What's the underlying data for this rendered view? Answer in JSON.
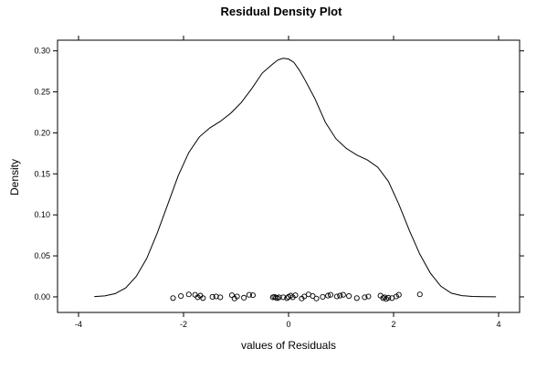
{
  "chart_data": {
    "type": "line",
    "title": "Residual Density Plot",
    "xlabel": "values of Residuals",
    "ylabel": "Density",
    "xlim": [
      -4.4,
      4.4
    ],
    "ylim": [
      -0.019,
      0.313
    ],
    "grid": false,
    "legend": "none",
    "x_ticks": [
      -4,
      -2,
      0,
      2,
      4
    ],
    "x_tick_labels": [
      "-4",
      "-2",
      "0",
      "2",
      "4"
    ],
    "y_ticks": [
      0.0,
      0.05,
      0.1,
      0.15,
      0.2,
      0.25,
      0.3
    ],
    "y_tick_labels": [
      "0.00",
      "0.05",
      "0.10",
      "0.15",
      "0.20",
      "0.25",
      "0.30"
    ],
    "series": [
      {
        "kind": "density-line",
        "color": "#000000",
        "x": [
          -3.7,
          -3.5,
          -3.3,
          -3.1,
          -2.9,
          -2.7,
          -2.5,
          -2.3,
          -2.1,
          -1.9,
          -1.7,
          -1.5,
          -1.3,
          -1.1,
          -0.9,
          -0.7,
          -0.5,
          -0.3,
          -0.2,
          -0.1,
          0.0,
          0.1,
          0.2,
          0.3,
          0.5,
          0.7,
          0.9,
          1.1,
          1.3,
          1.5,
          1.7,
          1.9,
          2.1,
          2.3,
          2.5,
          2.7,
          2.9,
          3.1,
          3.3,
          3.5,
          3.7,
          3.95
        ],
        "y": [
          0.0003,
          0.0012,
          0.004,
          0.011,
          0.025,
          0.047,
          0.078,
          0.113,
          0.148,
          0.176,
          0.195,
          0.206,
          0.214,
          0.224,
          0.237,
          0.254,
          0.273,
          0.284,
          0.289,
          0.291,
          0.29,
          0.286,
          0.277,
          0.266,
          0.242,
          0.213,
          0.193,
          0.181,
          0.173,
          0.167,
          0.158,
          0.141,
          0.113,
          0.081,
          0.052,
          0.029,
          0.013,
          0.0045,
          0.0015,
          0.0005,
          0.0002,
          0.0001
        ]
      },
      {
        "kind": "rug-points",
        "marker": "open-circle",
        "color": "#000000",
        "x": [
          -2.2,
          -2.05,
          -1.9,
          -1.78,
          -1.73,
          -1.68,
          -1.63,
          -1.45,
          -1.38,
          -1.3,
          -1.08,
          -1.03,
          -0.98,
          -0.85,
          -0.75,
          -0.68,
          -0.3,
          -0.27,
          -0.24,
          -0.21,
          -0.18,
          -0.1,
          -0.03,
          0.0,
          0.04,
          0.08,
          0.13,
          0.25,
          0.3,
          0.38,
          0.46,
          0.53,
          0.65,
          0.75,
          0.8,
          0.92,
          0.98,
          1.04,
          1.15,
          1.3,
          1.45,
          1.52,
          1.75,
          1.8,
          1.83,
          1.86,
          1.9,
          1.97,
          2.05,
          2.1,
          2.5
        ],
        "y": [
          -0.0015,
          0.001,
          0.003,
          0.0025,
          -0.0005,
          0.0015,
          -0.0015,
          0.0,
          0.0005,
          -0.0005,
          0.002,
          -0.002,
          0.0005,
          -0.001,
          0.0025,
          0.002,
          -0.0005,
          0.0,
          -0.001,
          -0.0015,
          -0.0005,
          -0.0005,
          -0.0015,
          0.0,
          0.0015,
          -0.0005,
          0.002,
          -0.002,
          0.0005,
          0.003,
          0.001,
          -0.002,
          0.0,
          0.0015,
          0.0025,
          0.0005,
          0.0015,
          0.0025,
          0.001,
          -0.0015,
          -0.0005,
          0.0005,
          0.0015,
          -0.0015,
          -0.0005,
          -0.0025,
          -0.001,
          -0.0015,
          0.0005,
          0.0025,
          0.003
        ]
      }
    ]
  }
}
